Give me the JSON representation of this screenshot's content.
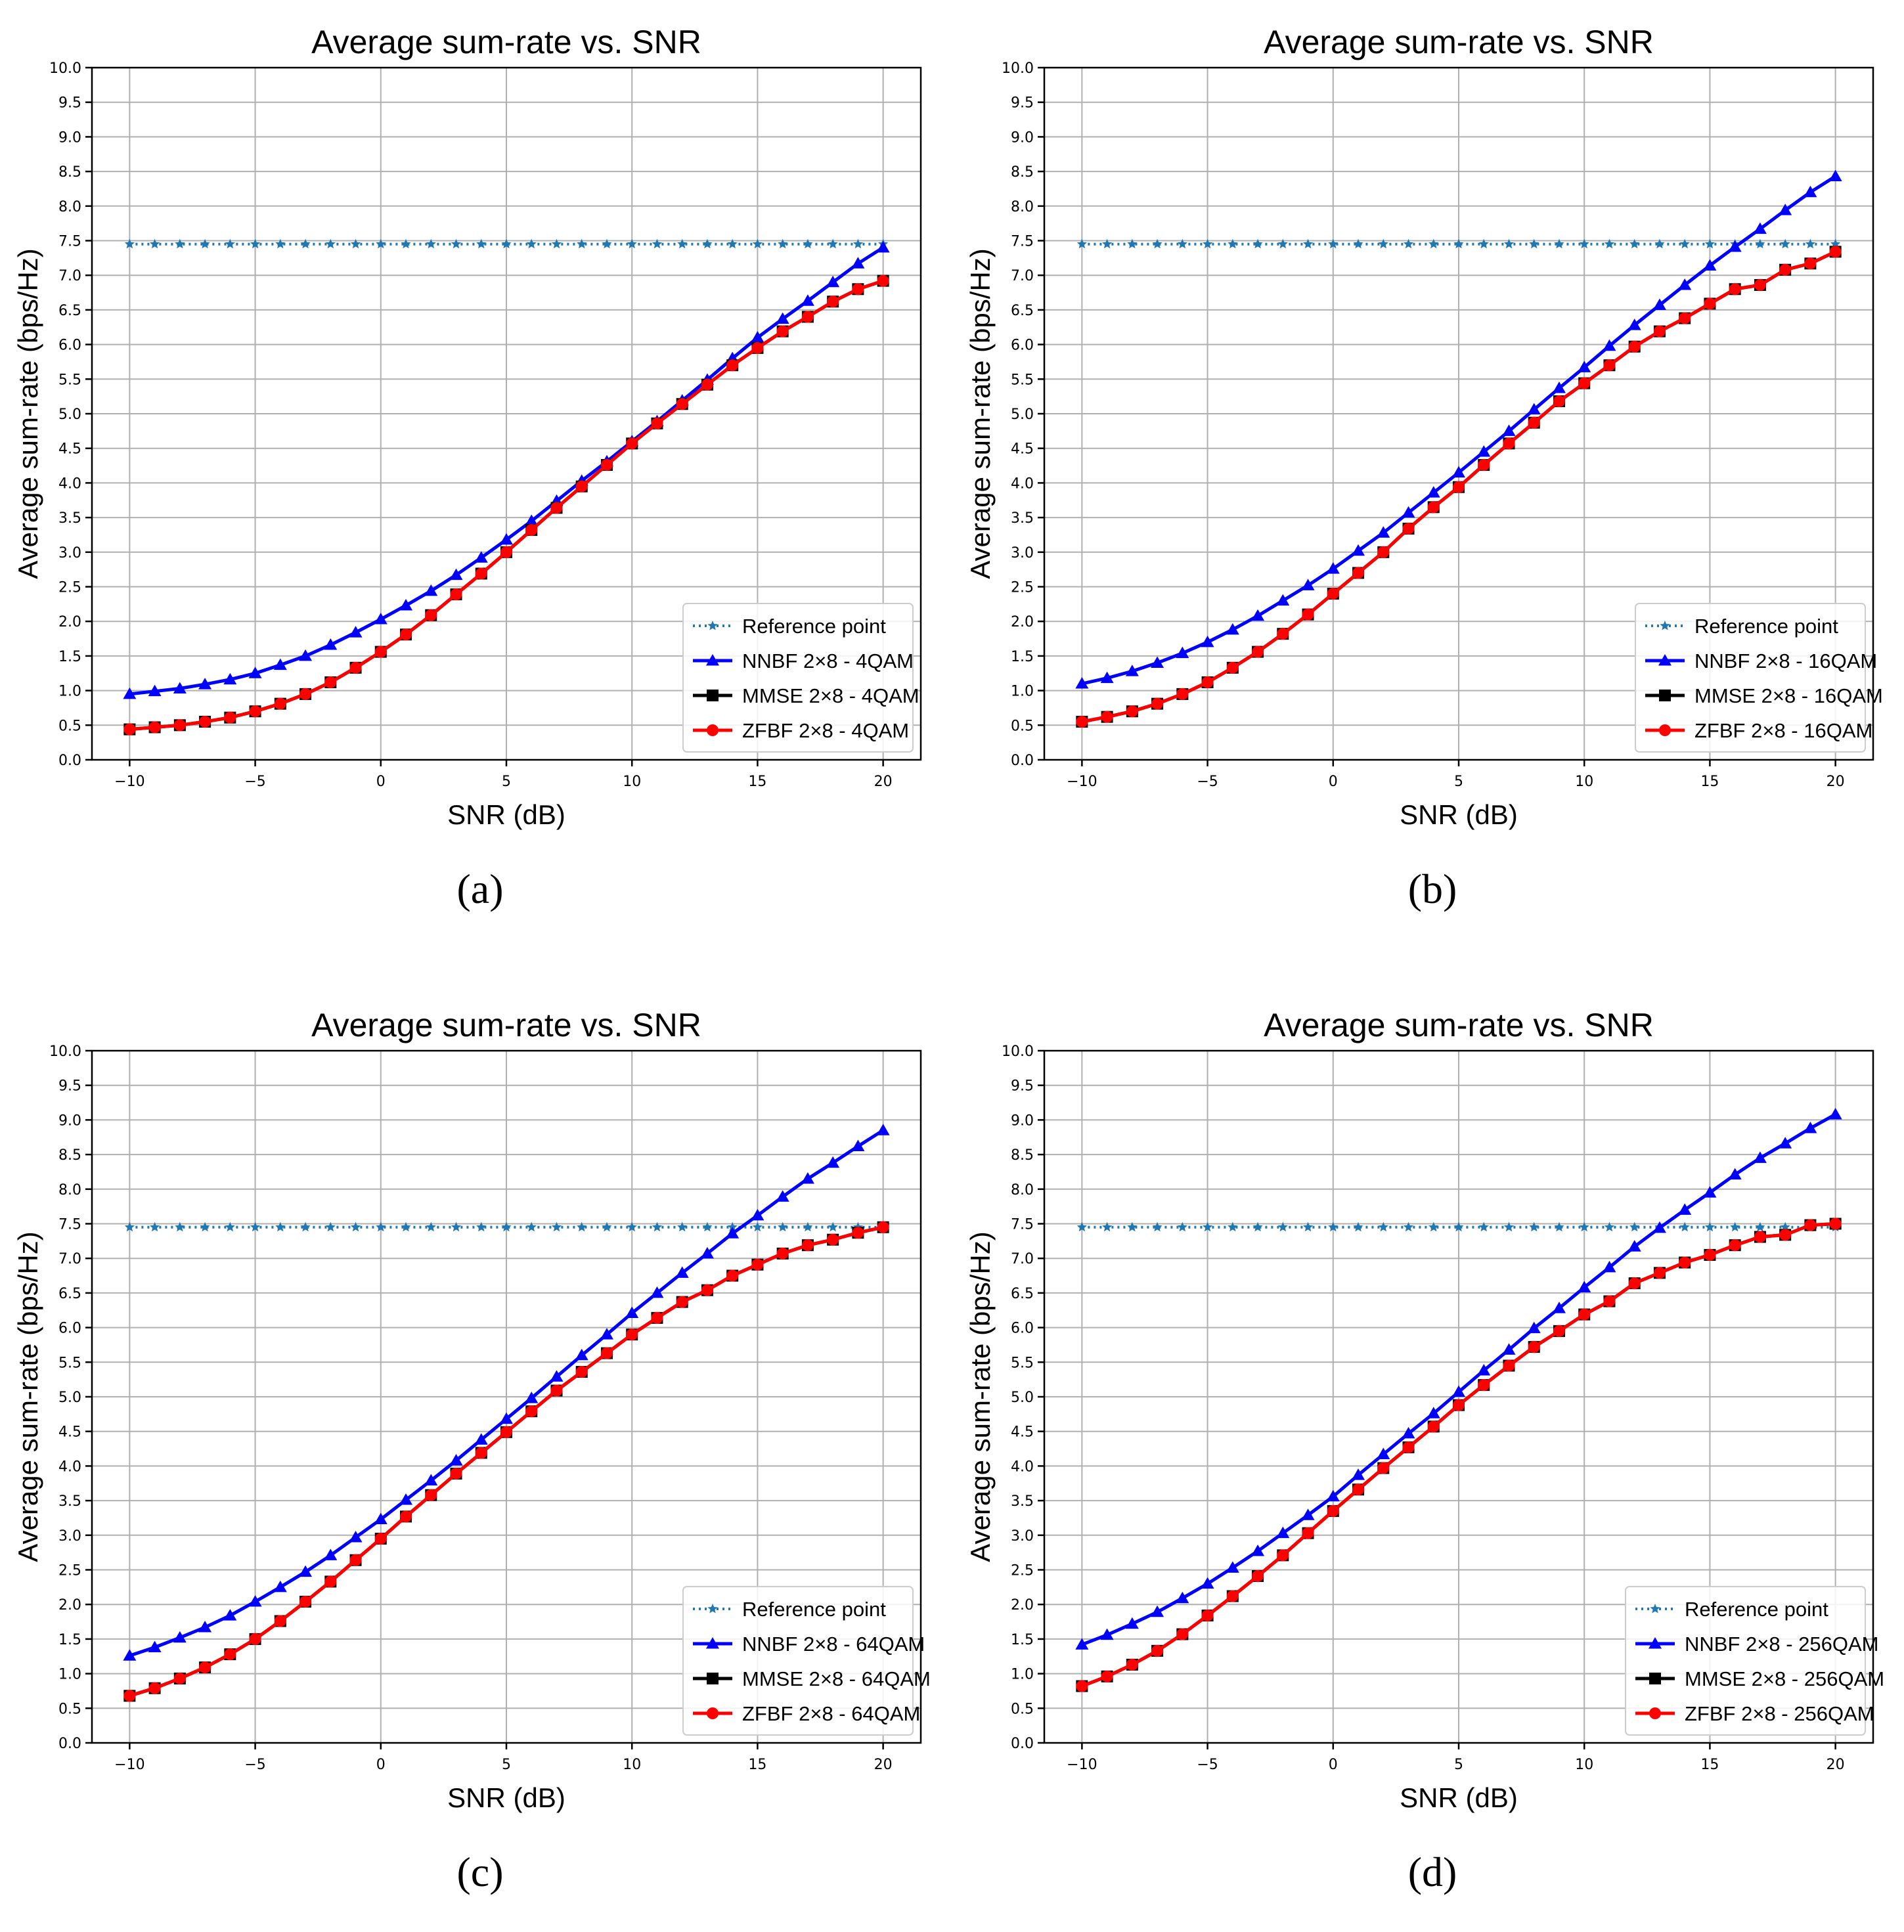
{
  "chart_data": [
    {
      "type": "line",
      "caption": "(a)",
      "title": "Average sum-rate vs. SNR",
      "xlabel": "SNR (dB)",
      "ylabel": "Average sum-rate (bps/Hz)",
      "xlim": [
        -11.5,
        21.5
      ],
      "ylim": [
        0,
        10
      ],
      "xticks": [
        -10,
        -5,
        0,
        5,
        10,
        15,
        20
      ],
      "xtick_labels": [
        "−10",
        "−5",
        "0",
        "5",
        "10",
        "15",
        "20"
      ],
      "yticks": [
        0.0,
        0.5,
        1.0,
        1.5,
        2.0,
        2.5,
        3.0,
        3.5,
        4.0,
        4.5,
        5.0,
        5.5,
        6.0,
        6.5,
        7.0,
        7.5,
        8.0,
        8.5,
        9.0,
        9.5,
        10.0
      ],
      "ytick_labels": [
        "0.0",
        "0.5",
        "1.0",
        "1.5",
        "2.0",
        "2.5",
        "3.0",
        "3.5",
        "4.0",
        "4.5",
        "5.0",
        "5.5",
        "6.0",
        "6.5",
        "7.0",
        "7.5",
        "8.0",
        "8.5",
        "9.0",
        "9.5",
        "10.0"
      ],
      "grid": true,
      "legend_position": "lower-right",
      "x": [
        -10,
        -9,
        -8,
        -7,
        -6,
        -5,
        -4,
        -3,
        -2,
        -1,
        0,
        1,
        2,
        3,
        4,
        5,
        6,
        7,
        8,
        9,
        10,
        11,
        12,
        13,
        14,
        15,
        16,
        17,
        18,
        19,
        20
      ],
      "series": [
        {
          "name": "Reference point",
          "color": "#1f77b4",
          "marker": "star",
          "style": "dotted",
          "values": [
            7.45,
            7.45,
            7.45,
            7.45,
            7.45,
            7.45,
            7.45,
            7.45,
            7.45,
            7.45,
            7.45,
            7.45,
            7.45,
            7.45,
            7.45,
            7.45,
            7.45,
            7.45,
            7.45,
            7.45,
            7.45,
            7.45,
            7.45,
            7.45,
            7.45,
            7.45,
            7.45,
            7.45,
            7.45,
            7.45,
            7.45
          ]
        },
        {
          "name": "NNBF 2×8 - 4QAM",
          "color": "#0000ff",
          "marker": "triangle",
          "style": "solid",
          "values": [
            0.95,
            0.99,
            1.03,
            1.09,
            1.16,
            1.25,
            1.37,
            1.5,
            1.66,
            1.84,
            2.03,
            2.23,
            2.44,
            2.67,
            2.92,
            3.18,
            3.45,
            3.74,
            4.03,
            4.31,
            4.6,
            4.89,
            5.19,
            5.49,
            5.8,
            6.1,
            6.37,
            6.63,
            6.9,
            7.17,
            7.4
          ]
        },
        {
          "name": "MMSE 2×8 - 4QAM",
          "color": "#000000",
          "marker": "square",
          "style": "solid",
          "values": [
            0.44,
            0.47,
            0.5,
            0.55,
            0.61,
            0.7,
            0.81,
            0.95,
            1.12,
            1.33,
            1.56,
            1.81,
            2.09,
            2.39,
            2.69,
            3.0,
            3.32,
            3.64,
            3.95,
            4.26,
            4.57,
            4.86,
            5.14,
            5.42,
            5.7,
            5.95,
            6.19,
            6.4,
            6.62,
            6.8,
            6.92
          ]
        },
        {
          "name": "ZFBF 2×8 - 4QAM",
          "color": "#ff0000",
          "marker": "circle",
          "style": "solid",
          "values": [
            0.44,
            0.47,
            0.5,
            0.55,
            0.61,
            0.7,
            0.81,
            0.95,
            1.12,
            1.33,
            1.56,
            1.81,
            2.09,
            2.39,
            2.69,
            3.0,
            3.32,
            3.64,
            3.95,
            4.26,
            4.57,
            4.86,
            5.14,
            5.42,
            5.7,
            5.95,
            6.19,
            6.4,
            6.62,
            6.8,
            6.92
          ]
        }
      ]
    },
    {
      "type": "line",
      "caption": "(b)",
      "title": "Average sum-rate vs. SNR",
      "xlabel": "SNR (dB)",
      "ylabel": "Average sum-rate (bps/Hz)",
      "xlim": [
        -11.5,
        21.5
      ],
      "ylim": [
        0,
        10
      ],
      "xticks": [
        -10,
        -5,
        0,
        5,
        10,
        15,
        20
      ],
      "xtick_labels": [
        "−10",
        "−5",
        "0",
        "5",
        "10",
        "15",
        "20"
      ],
      "yticks": [
        0.0,
        0.5,
        1.0,
        1.5,
        2.0,
        2.5,
        3.0,
        3.5,
        4.0,
        4.5,
        5.0,
        5.5,
        6.0,
        6.5,
        7.0,
        7.5,
        8.0,
        8.5,
        9.0,
        9.5,
        10.0
      ],
      "ytick_labels": [
        "0.0",
        "0.5",
        "1.0",
        "1.5",
        "2.0",
        "2.5",
        "3.0",
        "3.5",
        "4.0",
        "4.5",
        "5.0",
        "5.5",
        "6.0",
        "6.5",
        "7.0",
        "7.5",
        "8.0",
        "8.5",
        "9.0",
        "9.5",
        "10.0"
      ],
      "grid": true,
      "legend_position": "lower-right",
      "x": [
        -10,
        -9,
        -8,
        -7,
        -6,
        -5,
        -4,
        -3,
        -2,
        -1,
        0,
        1,
        2,
        3,
        4,
        5,
        6,
        7,
        8,
        9,
        10,
        11,
        12,
        13,
        14,
        15,
        16,
        17,
        18,
        19,
        20
      ],
      "series": [
        {
          "name": "Reference point",
          "color": "#1f77b4",
          "marker": "star",
          "style": "dotted",
          "values": [
            7.45,
            7.45,
            7.45,
            7.45,
            7.45,
            7.45,
            7.45,
            7.45,
            7.45,
            7.45,
            7.45,
            7.45,
            7.45,
            7.45,
            7.45,
            7.45,
            7.45,
            7.45,
            7.45,
            7.45,
            7.45,
            7.45,
            7.45,
            7.45,
            7.45,
            7.45,
            7.45,
            7.45,
            7.45,
            7.45,
            7.45
          ]
        },
        {
          "name": "NNBF 2×8 - 16QAM",
          "color": "#0000ff",
          "marker": "triangle",
          "style": "solid",
          "values": [
            1.1,
            1.18,
            1.28,
            1.4,
            1.54,
            1.7,
            1.88,
            2.08,
            2.3,
            2.52,
            2.76,
            3.02,
            3.28,
            3.57,
            3.86,
            4.15,
            4.45,
            4.75,
            5.06,
            5.37,
            5.67,
            5.98,
            6.28,
            6.57,
            6.86,
            7.14,
            7.41,
            7.67,
            7.94,
            8.2,
            8.43
          ]
        },
        {
          "name": "MMSE 2×8 - 16QAM",
          "color": "#000000",
          "marker": "square",
          "style": "solid",
          "values": [
            0.55,
            0.62,
            0.7,
            0.81,
            0.95,
            1.12,
            1.33,
            1.56,
            1.82,
            2.1,
            2.4,
            2.7,
            3.0,
            3.34,
            3.65,
            3.94,
            4.26,
            4.57,
            4.87,
            5.18,
            5.44,
            5.7,
            5.97,
            6.19,
            6.38,
            6.59,
            6.8,
            6.86,
            7.08,
            7.17,
            7.34
          ]
        },
        {
          "name": "ZFBF 2×8 - 16QAM",
          "color": "#ff0000",
          "marker": "circle",
          "style": "solid",
          "values": [
            0.55,
            0.62,
            0.7,
            0.81,
            0.95,
            1.12,
            1.33,
            1.56,
            1.82,
            2.1,
            2.4,
            2.7,
            3.0,
            3.34,
            3.65,
            3.94,
            4.26,
            4.57,
            4.87,
            5.18,
            5.44,
            5.7,
            5.97,
            6.19,
            6.38,
            6.59,
            6.8,
            6.86,
            7.08,
            7.17,
            7.34
          ]
        }
      ]
    },
    {
      "type": "line",
      "caption": "(c)",
      "title": "Average sum-rate vs. SNR",
      "xlabel": "SNR (dB)",
      "ylabel": "Average sum-rate (bps/Hz)",
      "xlim": [
        -11.5,
        21.5
      ],
      "ylim": [
        0,
        10
      ],
      "xticks": [
        -10,
        -5,
        0,
        5,
        10,
        15,
        20
      ],
      "xtick_labels": [
        "−10",
        "−5",
        "0",
        "5",
        "10",
        "15",
        "20"
      ],
      "yticks": [
        0.0,
        0.5,
        1.0,
        1.5,
        2.0,
        2.5,
        3.0,
        3.5,
        4.0,
        4.5,
        5.0,
        5.5,
        6.0,
        6.5,
        7.0,
        7.5,
        8.0,
        8.5,
        9.0,
        9.5,
        10.0
      ],
      "ytick_labels": [
        "0.0",
        "0.5",
        "1.0",
        "1.5",
        "2.0",
        "2.5",
        "3.0",
        "3.5",
        "4.0",
        "4.5",
        "5.0",
        "5.5",
        "6.0",
        "6.5",
        "7.0",
        "7.5",
        "8.0",
        "8.5",
        "9.0",
        "9.5",
        "10.0"
      ],
      "grid": true,
      "legend_position": "lower-right",
      "x": [
        -10,
        -9,
        -8,
        -7,
        -6,
        -5,
        -4,
        -3,
        -2,
        -1,
        0,
        1,
        2,
        3,
        4,
        5,
        6,
        7,
        8,
        9,
        10,
        11,
        12,
        13,
        14,
        15,
        16,
        17,
        18,
        19,
        20
      ],
      "series": [
        {
          "name": "Reference point",
          "color": "#1f77b4",
          "marker": "star",
          "style": "dotted",
          "values": [
            7.45,
            7.45,
            7.45,
            7.45,
            7.45,
            7.45,
            7.45,
            7.45,
            7.45,
            7.45,
            7.45,
            7.45,
            7.45,
            7.45,
            7.45,
            7.45,
            7.45,
            7.45,
            7.45,
            7.45,
            7.45,
            7.45,
            7.45,
            7.45,
            7.45,
            7.45,
            7.45,
            7.45,
            7.45,
            7.45,
            7.45
          ]
        },
        {
          "name": "NNBF 2×8 - 64QAM",
          "color": "#0000ff",
          "marker": "triangle",
          "style": "solid",
          "values": [
            1.26,
            1.38,
            1.52,
            1.67,
            1.84,
            2.04,
            2.25,
            2.47,
            2.71,
            2.97,
            3.23,
            3.51,
            3.79,
            4.08,
            4.38,
            4.68,
            4.98,
            5.29,
            5.6,
            5.9,
            6.21,
            6.5,
            6.79,
            7.07,
            7.36,
            7.62,
            7.89,
            8.15,
            8.38,
            8.62,
            8.85
          ]
        },
        {
          "name": "MMSE 2×8 - 64QAM",
          "color": "#000000",
          "marker": "square",
          "style": "solid",
          "values": [
            0.68,
            0.79,
            0.93,
            1.09,
            1.28,
            1.5,
            1.76,
            2.04,
            2.33,
            2.64,
            2.95,
            3.27,
            3.58,
            3.89,
            4.19,
            4.49,
            4.79,
            5.09,
            5.36,
            5.63,
            5.9,
            6.14,
            6.37,
            6.54,
            6.75,
            6.91,
            7.07,
            7.19,
            7.27,
            7.37,
            7.45
          ]
        },
        {
          "name": "ZFBF 2×8 - 64QAM",
          "color": "#ff0000",
          "marker": "circle",
          "style": "solid",
          "values": [
            0.68,
            0.79,
            0.93,
            1.09,
            1.28,
            1.5,
            1.76,
            2.04,
            2.33,
            2.64,
            2.95,
            3.27,
            3.58,
            3.89,
            4.19,
            4.49,
            4.79,
            5.09,
            5.36,
            5.63,
            5.9,
            6.14,
            6.37,
            6.54,
            6.75,
            6.91,
            7.07,
            7.19,
            7.27,
            7.37,
            7.45
          ]
        }
      ]
    },
    {
      "type": "line",
      "caption": "(d)",
      "title": "Average sum-rate vs. SNR",
      "xlabel": "SNR (dB)",
      "ylabel": "Average sum-rate (bps/Hz)",
      "xlim": [
        -11.5,
        21.5
      ],
      "ylim": [
        0,
        10
      ],
      "xticks": [
        -10,
        -5,
        0,
        5,
        10,
        15,
        20
      ],
      "xtick_labels": [
        "−10",
        "−5",
        "0",
        "5",
        "10",
        "15",
        "20"
      ],
      "yticks": [
        0.0,
        0.5,
        1.0,
        1.5,
        2.0,
        2.5,
        3.0,
        3.5,
        4.0,
        4.5,
        5.0,
        5.5,
        6.0,
        6.5,
        7.0,
        7.5,
        8.0,
        8.5,
        9.0,
        9.5,
        10.0
      ],
      "ytick_labels": [
        "0.0",
        "0.5",
        "1.0",
        "1.5",
        "2.0",
        "2.5",
        "3.0",
        "3.5",
        "4.0",
        "4.5",
        "5.0",
        "5.5",
        "6.0",
        "6.5",
        "7.0",
        "7.5",
        "8.0",
        "8.5",
        "9.0",
        "9.5",
        "10.0"
      ],
      "grid": true,
      "legend_position": "lower-right",
      "x": [
        -10,
        -9,
        -8,
        -7,
        -6,
        -5,
        -4,
        -3,
        -2,
        -1,
        0,
        1,
        2,
        3,
        4,
        5,
        6,
        7,
        8,
        9,
        10,
        11,
        12,
        13,
        14,
        15,
        16,
        17,
        18,
        19,
        20
      ],
      "series": [
        {
          "name": "Reference point",
          "color": "#1f77b4",
          "marker": "star",
          "style": "dotted",
          "values": [
            7.45,
            7.45,
            7.45,
            7.45,
            7.45,
            7.45,
            7.45,
            7.45,
            7.45,
            7.45,
            7.45,
            7.45,
            7.45,
            7.45,
            7.45,
            7.45,
            7.45,
            7.45,
            7.45,
            7.45,
            7.45,
            7.45,
            7.45,
            7.45,
            7.45,
            7.45,
            7.45,
            7.45,
            7.45,
            7.45,
            7.45
          ]
        },
        {
          "name": "NNBF 2×8 - 256QAM",
          "color": "#0000ff",
          "marker": "triangle",
          "style": "solid",
          "values": [
            1.42,
            1.56,
            1.72,
            1.89,
            2.09,
            2.3,
            2.53,
            2.77,
            3.03,
            3.29,
            3.56,
            3.87,
            4.17,
            4.47,
            4.76,
            5.07,
            5.38,
            5.68,
            5.99,
            6.28,
            6.58,
            6.87,
            7.17,
            7.44,
            7.7,
            7.95,
            8.21,
            8.45,
            8.66,
            8.88,
            9.08
          ]
        },
        {
          "name": "MMSE 2×8 - 256QAM",
          "color": "#000000",
          "marker": "square",
          "style": "solid",
          "values": [
            0.82,
            0.96,
            1.13,
            1.33,
            1.57,
            1.84,
            2.12,
            2.41,
            2.71,
            3.03,
            3.35,
            3.66,
            3.97,
            4.27,
            4.57,
            4.88,
            5.17,
            5.45,
            5.72,
            5.95,
            6.19,
            6.38,
            6.64,
            6.79,
            6.94,
            7.05,
            7.19,
            7.31,
            7.34,
            7.48,
            7.5
          ]
        },
        {
          "name": "ZFBF 2×8 - 256QAM",
          "color": "#ff0000",
          "marker": "circle",
          "style": "solid",
          "values": [
            0.82,
            0.96,
            1.13,
            1.33,
            1.57,
            1.84,
            2.12,
            2.41,
            2.71,
            3.03,
            3.35,
            3.66,
            3.97,
            4.27,
            4.57,
            4.88,
            5.17,
            5.45,
            5.72,
            5.95,
            6.19,
            6.38,
            6.64,
            6.79,
            6.94,
            7.05,
            7.19,
            7.31,
            7.34,
            7.48,
            7.5
          ]
        }
      ]
    }
  ]
}
